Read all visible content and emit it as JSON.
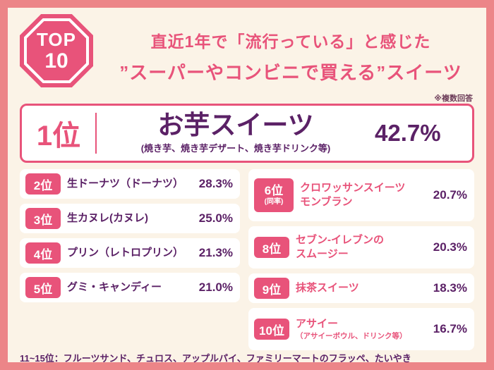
{
  "colors": {
    "background_outer": "#ec8588",
    "background_inner": "#fbf3e7",
    "accent_pink": "#e8537a",
    "deep_purple": "#5b2166"
  },
  "badge": {
    "top": "TOP",
    "ten": "10"
  },
  "header": {
    "title_line1": "直近1年で「流行っている」と感じた",
    "title_line2": "”スーパーやコンビニで買える”スイーツ",
    "note": "※複数回答"
  },
  "first": {
    "rank": "1位",
    "name": "お芋スイーツ",
    "sub": "(焼き芋、焼き芋デザート、焼き芋ドリンク等)",
    "value": "42.7%"
  },
  "left_items": [
    {
      "rank": "2位",
      "name": "生ドーナツ（ドーナツ）",
      "value": "28.3%"
    },
    {
      "rank": "3位",
      "name": "生カヌレ(カヌレ)",
      "value": "25.0%"
    },
    {
      "rank": "4位",
      "name": "プリン（レトロプリン）",
      "value": "21.3%"
    },
    {
      "rank": "5位",
      "name": "グミ・キャンディー",
      "value": "21.0%"
    }
  ],
  "right_items": [
    {
      "rank": "6位",
      "rank_note": "(同率)",
      "name_line1": "クロワッサンスイーツ",
      "name_line2": "モンブラン",
      "value": "20.7%"
    },
    {
      "rank": "8位",
      "name_line1": "セブン-イレブンの",
      "name_line2": "スムージー",
      "value": "20.3%"
    },
    {
      "rank": "9位",
      "name_line1": "抹茶スイーツ",
      "value": "18.3%"
    },
    {
      "rank": "10位",
      "name_line1": "アサイー",
      "name_sub": "（アサイーボウル、ドリンク等）",
      "value": "16.7%"
    }
  ],
  "footer": {
    "text": "11~15位：フルーツサンド、チュロス、アップルパイ、ファミリーマートのフラッペ、たいやき"
  },
  "chart_data": {
    "type": "table",
    "title": "直近1年で「流行っている」と感じた”スーパーやコンビニで買える”スイーツ TOP10",
    "note": "※複数回答",
    "unit": "%",
    "rows": [
      {
        "rank": 1,
        "label": "お芋スイーツ（焼き芋、焼き芋デザート、焼き芋ドリンク等）",
        "value": 42.7
      },
      {
        "rank": 2,
        "label": "生ドーナツ（ドーナツ）",
        "value": 28.3
      },
      {
        "rank": 3,
        "label": "生カヌレ(カヌレ)",
        "value": 25.0
      },
      {
        "rank": 4,
        "label": "プリン（レトロプリン）",
        "value": 21.3
      },
      {
        "rank": 5,
        "label": "グミ・キャンディー",
        "value": 21.0
      },
      {
        "rank": 6,
        "label": "クロワッサンスイーツ",
        "value": 20.7,
        "tie": "同率"
      },
      {
        "rank": 6,
        "label": "モンブラン",
        "value": 20.7,
        "tie": "同率"
      },
      {
        "rank": 8,
        "label": "セブン-イレブンのスムージー",
        "value": 20.3
      },
      {
        "rank": 9,
        "label": "抹茶スイーツ",
        "value": 18.3
      },
      {
        "rank": 10,
        "label": "アサイー（アサイーボウル、ドリンク等）",
        "value": 16.7
      }
    ],
    "footnote": "11~15位：フルーツサンド、チュロス、アップルパイ、ファミリーマートのフラッペ、たいやき"
  }
}
